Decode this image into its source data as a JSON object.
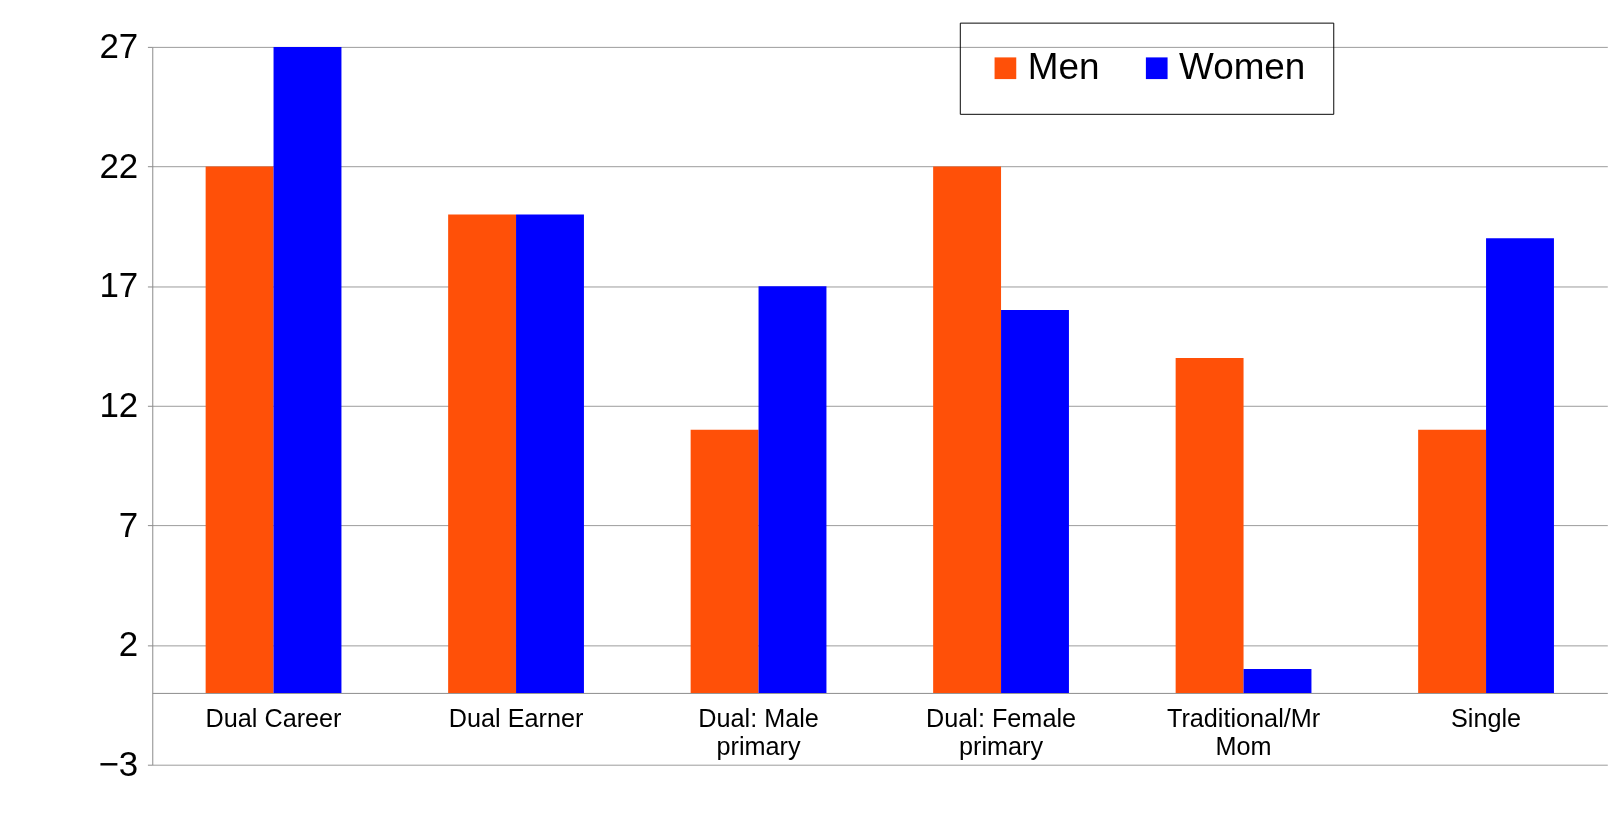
{
  "chart_data": {
    "type": "bar",
    "categories": [
      "Dual Career",
      "Dual Earner",
      "Dual:  Male primary",
      "Dual:  Female primary",
      "Traditional/Mr Mom",
      "Single"
    ],
    "series": [
      {
        "name": "Men",
        "color": "#ff5008",
        "values": [
          22,
          20,
          11,
          22,
          14,
          11
        ]
      },
      {
        "name": "Women",
        "color": "#0000ff",
        "values": [
          27,
          20,
          17,
          16,
          1,
          19
        ]
      }
    ],
    "ylim": [
      -3,
      27
    ],
    "yticks": [
      -3,
      2,
      7,
      12,
      17,
      22,
      27
    ],
    "grid": "y",
    "legend": "top right"
  }
}
